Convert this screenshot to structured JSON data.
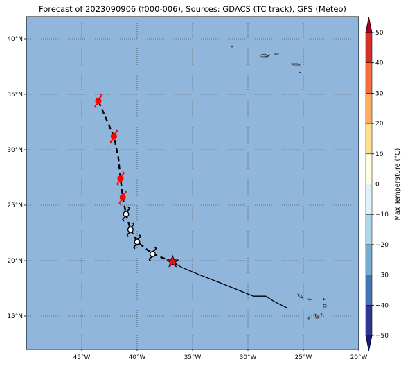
{
  "title": "Forecast of 2023090906 (f000-006), Sources: GDACS (TC track), GFS (Meteo)",
  "map": {
    "lon_range": [
      -50,
      -20
    ],
    "lat_range": [
      12,
      42
    ],
    "ocean_color": "#91b6dc",
    "lat_ticks": [
      {
        "value": 40,
        "label": "40°N"
      },
      {
        "value": 35,
        "label": "35°N"
      },
      {
        "value": 30,
        "label": "30°N"
      },
      {
        "value": 25,
        "label": "25°N"
      },
      {
        "value": 20,
        "label": "20°N"
      },
      {
        "value": 15,
        "label": "15°N"
      }
    ],
    "lon_ticks": [
      {
        "value": -45,
        "label": "45°W"
      },
      {
        "value": -40,
        "label": "40°W"
      },
      {
        "value": -35,
        "label": "35°W"
      },
      {
        "value": -30,
        "label": "30°W"
      },
      {
        "value": -25,
        "label": "25°W"
      },
      {
        "value": -20,
        "label": "20°W"
      }
    ]
  },
  "track": {
    "observed": [
      [
        -26.4,
        15.7
      ],
      [
        -27.6,
        16.3
      ],
      [
        -28.4,
        16.8
      ],
      [
        -29.5,
        16.8
      ],
      [
        -31,
        17.4
      ],
      [
        -32.5,
        18
      ],
      [
        -34.3,
        18.7
      ],
      [
        -36.0,
        19.4
      ],
      [
        -36.8,
        19.9
      ]
    ],
    "forecast": [
      [
        -36.8,
        19.9
      ],
      [
        -38.6,
        20.6
      ],
      [
        -40.0,
        21.7
      ],
      [
        -40.6,
        22.8
      ],
      [
        -41.0,
        24.2
      ],
      [
        -41.3,
        25.7
      ],
      [
        -41.5,
        27.4
      ],
      [
        -41.7,
        29.3
      ],
      [
        -42.1,
        31.2
      ],
      [
        -42.8,
        32.8
      ],
      [
        -43.5,
        34.4
      ]
    ],
    "current_position": [
      -36.8,
      19.9
    ],
    "current_color": "#e8141a",
    "storm_symbols": [
      {
        "lon": -38.6,
        "lat": 20.6,
        "color": "#ffffff"
      },
      {
        "lon": -40.0,
        "lat": 21.7,
        "color": "#ffffff"
      },
      {
        "lon": -40.6,
        "lat": 22.8,
        "color": "#ffffff"
      },
      {
        "lon": -41.0,
        "lat": 24.2,
        "color": "#ffffff"
      },
      {
        "lon": -41.3,
        "lat": 25.7,
        "color": "#ff0000"
      },
      {
        "lon": -41.5,
        "lat": 27.4,
        "color": "#ff0000"
      },
      {
        "lon": -42.1,
        "lat": 31.2,
        "color": "#ff0000"
      },
      {
        "lon": -43.5,
        "lat": 34.4,
        "color": "#ff0000"
      }
    ]
  },
  "colorbar": {
    "label": "Max Temperature (°C)",
    "ticks": [
      {
        "value": 50,
        "label": "50"
      },
      {
        "value": 40,
        "label": "40"
      },
      {
        "value": 30,
        "label": "30"
      },
      {
        "value": 20,
        "label": "20"
      },
      {
        "value": 10,
        "label": "10"
      },
      {
        "value": 0,
        "label": "0"
      },
      {
        "value": -10,
        "label": "−10"
      },
      {
        "value": -20,
        "label": "−20"
      },
      {
        "value": -30,
        "label": "−30"
      },
      {
        "value": -40,
        "label": "−40"
      },
      {
        "value": -50,
        "label": "−50"
      }
    ],
    "bands": [
      {
        "from": -50,
        "to": -40,
        "color": "#313695"
      },
      {
        "from": -40,
        "to": -30,
        "color": "#4575b4"
      },
      {
        "from": -30,
        "to": -20,
        "color": "#74add1"
      },
      {
        "from": -20,
        "to": -10,
        "color": "#abd9e9"
      },
      {
        "from": -10,
        "to": 0,
        "color": "#e0f3f8"
      },
      {
        "from": 0,
        "to": 10,
        "color": "#ffffdf"
      },
      {
        "from": 10,
        "to": 20,
        "color": "#fee090"
      },
      {
        "from": 20,
        "to": 30,
        "color": "#fdae61"
      },
      {
        "from": 30,
        "to": 40,
        "color": "#f46d43"
      },
      {
        "from": 40,
        "to": 50,
        "color": "#d73027"
      }
    ],
    "under_color": "#1a1a80",
    "over_color": "#a50026"
  }
}
